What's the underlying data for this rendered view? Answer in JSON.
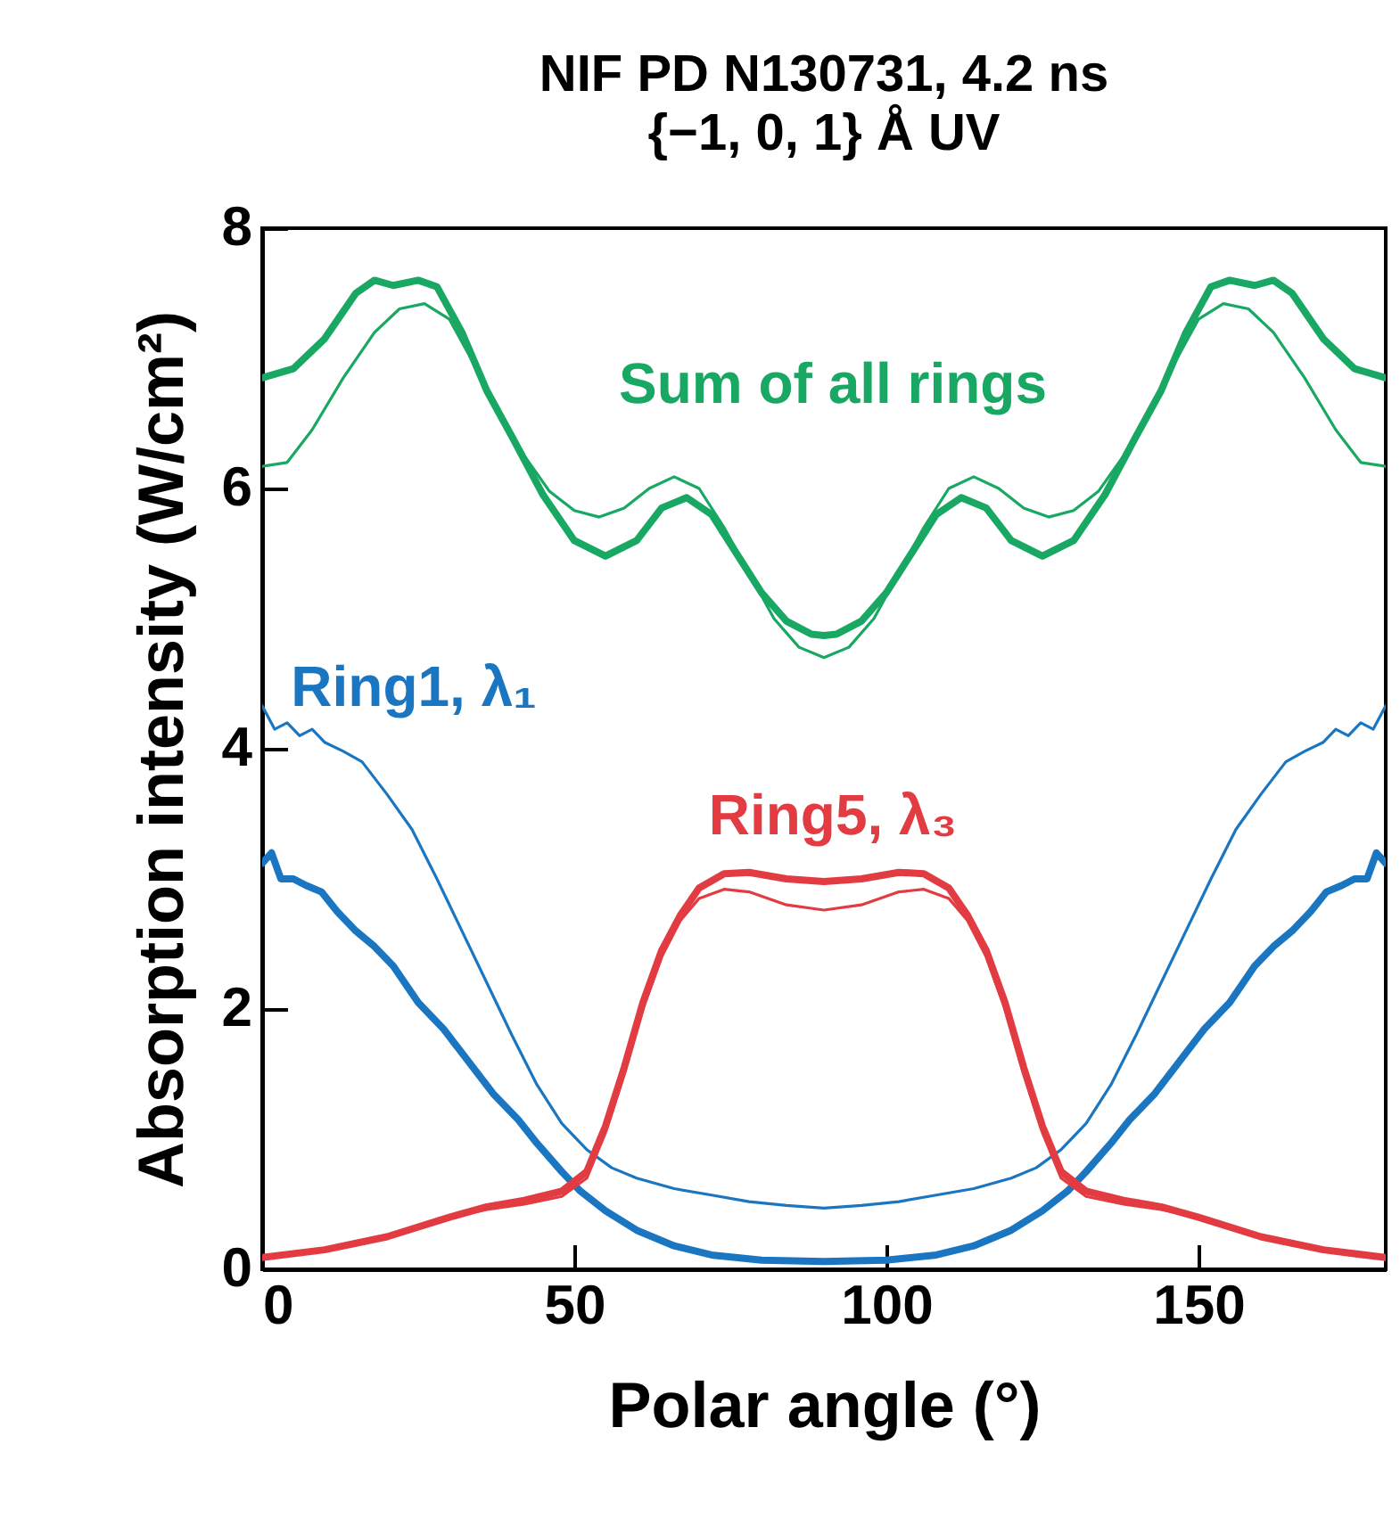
{
  "chart_data": {
    "type": "line",
    "title": "NIF PD N130731, 4.2 ns",
    "subtitle": "{−1, 0, 1} Å UV",
    "xlabel": "Polar angle (°)",
    "ylabel": "Absorption intensity (W/cm²)",
    "xlim": [
      0,
      180
    ],
    "xticks": [
      0,
      50,
      100,
      150
    ],
    "ylim": [
      0,
      8
    ],
    "yticks": [
      0,
      2,
      4,
      6,
      8
    ],
    "series": [
      {
        "name": "Sum of all rings",
        "color": "#19a863",
        "x": [
          0,
          5,
          10,
          15,
          18,
          21,
          25,
          28,
          32,
          36,
          40,
          45,
          50,
          55,
          60,
          64,
          68,
          72,
          76,
          80,
          84,
          88,
          90,
          92,
          96,
          100,
          104,
          108,
          112,
          116,
          120,
          125,
          130,
          135,
          140,
          144,
          148,
          152,
          155,
          159,
          162,
          165,
          170,
          175,
          180
        ],
        "values": [
          6.85,
          6.92,
          7.15,
          7.5,
          7.6,
          7.56,
          7.6,
          7.55,
          7.2,
          6.75,
          6.4,
          5.95,
          5.6,
          5.48,
          5.6,
          5.85,
          5.93,
          5.8,
          5.5,
          5.2,
          4.98,
          4.88,
          4.87,
          4.88,
          4.98,
          5.2,
          5.5,
          5.8,
          5.93,
          5.85,
          5.6,
          5.48,
          5.6,
          5.95,
          6.4,
          6.75,
          7.2,
          7.55,
          7.6,
          7.56,
          7.6,
          7.5,
          7.15,
          6.92,
          6.85
        ]
      },
      {
        "color": "#19a863",
        "x": [
          0,
          4,
          8,
          13,
          18,
          22,
          26,
          30,
          34,
          38,
          42,
          46,
          50,
          54,
          58,
          62,
          66,
          70,
          74,
          78,
          82,
          86,
          90,
          94,
          98,
          102,
          106,
          110,
          114,
          118,
          122,
          126,
          130,
          134,
          138,
          142,
          146,
          150,
          154,
          158,
          162,
          167,
          172,
          176,
          180
        ],
        "values": [
          6.17,
          6.2,
          6.45,
          6.85,
          7.2,
          7.38,
          7.42,
          7.3,
          6.95,
          6.6,
          6.25,
          5.98,
          5.83,
          5.78,
          5.85,
          6.0,
          6.09,
          6.0,
          5.7,
          5.35,
          5.0,
          4.78,
          4.7,
          4.78,
          5.0,
          5.35,
          5.7,
          6.0,
          6.09,
          6.0,
          5.85,
          5.78,
          5.83,
          5.98,
          6.25,
          6.6,
          6.95,
          7.3,
          7.42,
          7.38,
          7.2,
          6.85,
          6.45,
          6.2,
          6.17
        ]
      },
      {
        "name": "Ring1, λ₁",
        "color": "#1a76c1",
        "x": [
          0,
          1.5,
          3,
          5,
          7,
          9.5,
          12,
          15,
          18,
          21,
          25,
          29,
          33,
          37,
          41,
          44,
          48,
          51,
          55,
          60,
          66,
          72,
          80,
          90,
          100,
          108,
          114,
          120,
          125,
          129,
          132,
          136,
          139,
          143,
          147,
          151,
          155,
          159,
          162,
          165,
          168,
          170.5,
          173,
          175,
          177,
          178.5,
          180
        ],
        "values": [
          3.12,
          3.2,
          3.0,
          3.0,
          2.95,
          2.9,
          2.75,
          2.6,
          2.48,
          2.33,
          2.05,
          1.85,
          1.6,
          1.35,
          1.15,
          0.97,
          0.75,
          0.6,
          0.45,
          0.3,
          0.18,
          0.11,
          0.07,
          0.06,
          0.07,
          0.11,
          0.18,
          0.3,
          0.45,
          0.6,
          0.75,
          0.97,
          1.15,
          1.35,
          1.6,
          1.85,
          2.05,
          2.33,
          2.48,
          2.6,
          2.75,
          2.9,
          2.95,
          3.0,
          3.0,
          3.2,
          3.12
        ]
      },
      {
        "color": "#1a76c1",
        "x": [
          0,
          2,
          4,
          6,
          8,
          10,
          13,
          16,
          20,
          24,
          28,
          32,
          36,
          40,
          44,
          48,
          52,
          56,
          60,
          66,
          72,
          78,
          84,
          90,
          96,
          102,
          108,
          114,
          120,
          124,
          128,
          132,
          136,
          140,
          144,
          148,
          152,
          156,
          160,
          164,
          167,
          170,
          172,
          174,
          176,
          178,
          180
        ],
        "values": [
          4.33,
          4.15,
          4.2,
          4.1,
          4.15,
          4.05,
          3.98,
          3.9,
          3.65,
          3.38,
          3.0,
          2.6,
          2.2,
          1.8,
          1.42,
          1.12,
          0.92,
          0.78,
          0.7,
          0.62,
          0.57,
          0.52,
          0.49,
          0.47,
          0.49,
          0.52,
          0.57,
          0.62,
          0.7,
          0.78,
          0.92,
          1.12,
          1.42,
          1.8,
          2.2,
          2.6,
          3.0,
          3.38,
          3.65,
          3.9,
          3.98,
          4.05,
          4.15,
          4.1,
          4.2,
          4.15,
          4.33
        ]
      },
      {
        "name": "Ring5, λ₃",
        "color": "#e23b42",
        "x": [
          0,
          10,
          20,
          30,
          36,
          42,
          48,
          52,
          55,
          58,
          61,
          64,
          67,
          70,
          74,
          78,
          84,
          90,
          96,
          102,
          106,
          110,
          113,
          116,
          119,
          122,
          125,
          128,
          132,
          138,
          144,
          150,
          160,
          170,
          180
        ],
        "values": [
          0.09,
          0.15,
          0.25,
          0.4,
          0.48,
          0.53,
          0.6,
          0.75,
          1.1,
          1.55,
          2.05,
          2.45,
          2.72,
          2.93,
          3.04,
          3.05,
          3.0,
          2.98,
          3.0,
          3.05,
          3.04,
          2.93,
          2.72,
          2.45,
          2.05,
          1.55,
          1.1,
          0.75,
          0.6,
          0.53,
          0.48,
          0.4,
          0.25,
          0.15,
          0.09
        ]
      },
      {
        "color": "#e23b42",
        "x": [
          0,
          10,
          20,
          30,
          36,
          42,
          48,
          52,
          55,
          58,
          61,
          64,
          67,
          70,
          74,
          78,
          84,
          90,
          96,
          102,
          106,
          110,
          113,
          116,
          119,
          122,
          125,
          128,
          132,
          138,
          144,
          150,
          160,
          170,
          180
        ],
        "values": [
          0.09,
          0.15,
          0.25,
          0.4,
          0.46,
          0.5,
          0.56,
          0.7,
          1.05,
          1.5,
          2.0,
          2.4,
          2.68,
          2.85,
          2.92,
          2.9,
          2.8,
          2.76,
          2.8,
          2.9,
          2.92,
          2.85,
          2.68,
          2.4,
          2.0,
          1.5,
          1.05,
          0.7,
          0.56,
          0.5,
          0.46,
          0.4,
          0.25,
          0.15,
          0.09
        ]
      }
    ]
  }
}
